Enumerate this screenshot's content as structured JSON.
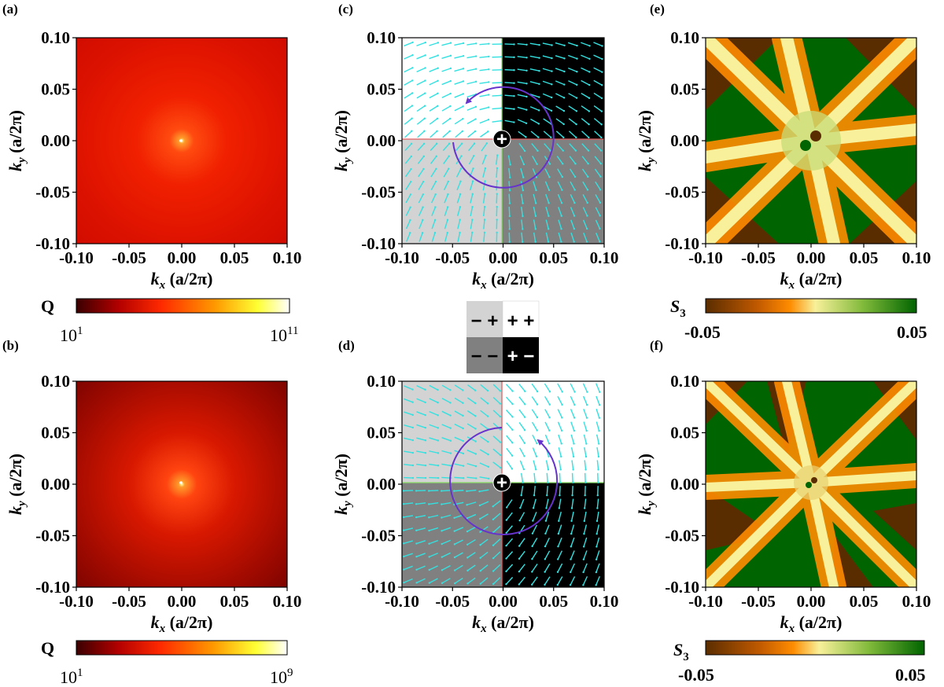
{
  "panel_labels": [
    "(a)",
    "(b)",
    "(c)",
    "(d)",
    "(e)",
    "(f)"
  ],
  "axes": {
    "tick_labels": [
      "-0.10",
      "-0.05",
      "0.00",
      "0.05",
      "0.10"
    ],
    "xlabel_main": "k",
    "xlabel_sub": "x",
    "ylabel_main": "k",
    "ylabel_sub": "y",
    "unit": "(a/2π)"
  },
  "colorbars": {
    "q_label": "Q",
    "q_a_min": "10",
    "q_a_min_exp": "1",
    "q_a_max": "10",
    "q_a_max_exp": "11",
    "q_b_min": "10",
    "q_b_min_exp": "1",
    "q_b_max": "10",
    "q_b_max_exp": "9",
    "s3_label": "S",
    "s3_sub": "3",
    "s3_min": "-0.05",
    "s3_max": "0.05"
  },
  "legend": {
    "top_left": "− +",
    "top_right": "+ +",
    "bottom_left": "− −",
    "bottom_right": "+ −"
  },
  "vortex_charge": "+",
  "colors": {
    "q_colormap": [
      "#3a0000",
      "#b30000",
      "#ff2a00",
      "#ff9900",
      "#ffff33",
      "#ffffff"
    ],
    "s3_colormap": [
      "#5a2d00",
      "#c25a00",
      "#ff8c00",
      "#f8f09a",
      "#7fb93a",
      "#006400"
    ],
    "arrow": "#34e0e0",
    "circle": "#6633cc",
    "quadrant_light": "#d3d3d3",
    "quadrant_white": "#ffffff",
    "quadrant_gray": "#808080",
    "quadrant_black": "#000000"
  },
  "chart_data": [
    {
      "panel": "(a)",
      "type": "heatmap",
      "xlabel": "kx (a/2π)",
      "ylabel": "ky (a/2π)",
      "xlim": [
        -0.1,
        0.1
      ],
      "ylim": [
        -0.1,
        0.1
      ],
      "colorbar": {
        "label": "Q",
        "scale": "log",
        "range": [
          10,
          100000000000
        ]
      },
      "peak_at": [
        0.0,
        0.0
      ]
    },
    {
      "panel": "(b)",
      "type": "heatmap",
      "xlabel": "kx (a/2π)",
      "ylabel": "ky (a/2π)",
      "xlim": [
        -0.1,
        0.1
      ],
      "ylim": [
        -0.1,
        0.1
      ],
      "colorbar": {
        "label": "Q",
        "scale": "log",
        "range": [
          10,
          1000000000
        ]
      },
      "peak_at": [
        0.0,
        0.0
      ]
    },
    {
      "panel": "(c)",
      "type": "vector-field",
      "xlabel": "kx (a/2π)",
      "ylabel": "ky (a/2π)",
      "xlim": [
        -0.1,
        0.1
      ],
      "ylim": [
        -0.1,
        0.1
      ],
      "quadrants": {
        "top_left": "− +",
        "top_right": "+ +",
        "bottom_left": "− −",
        "bottom_right": "+ −"
      },
      "vortex": {
        "center": [
          0.0,
          0.0
        ],
        "charge": "+"
      }
    },
    {
      "panel": "(d)",
      "type": "vector-field",
      "xlabel": "kx (a/2π)",
      "ylabel": "ky (a/2π)",
      "xlim": [
        -0.1,
        0.1
      ],
      "ylim": [
        -0.1,
        0.1
      ],
      "quadrants": {
        "top_left": "− +",
        "top_right": "+ +",
        "bottom_left": "− −",
        "bottom_right": "+ −"
      },
      "vortex": {
        "center": [
          0.0,
          0.0
        ],
        "charge": "+"
      }
    },
    {
      "panel": "(e)",
      "type": "heatmap",
      "xlabel": "kx (a/2π)",
      "ylabel": "ky (a/2π)",
      "xlim": [
        -0.1,
        0.1
      ],
      "ylim": [
        -0.1,
        0.1
      ],
      "colorbar": {
        "label": "S3",
        "range": [
          -0.05,
          0.05
        ]
      }
    },
    {
      "panel": "(f)",
      "type": "heatmap",
      "xlabel": "kx (a/2π)",
      "ylabel": "ky (a/2π)",
      "xlim": [
        -0.1,
        0.1
      ],
      "ylim": [
        -0.1,
        0.1
      ],
      "colorbar": {
        "label": "S3",
        "range": [
          -0.05,
          0.05
        ]
      }
    }
  ]
}
